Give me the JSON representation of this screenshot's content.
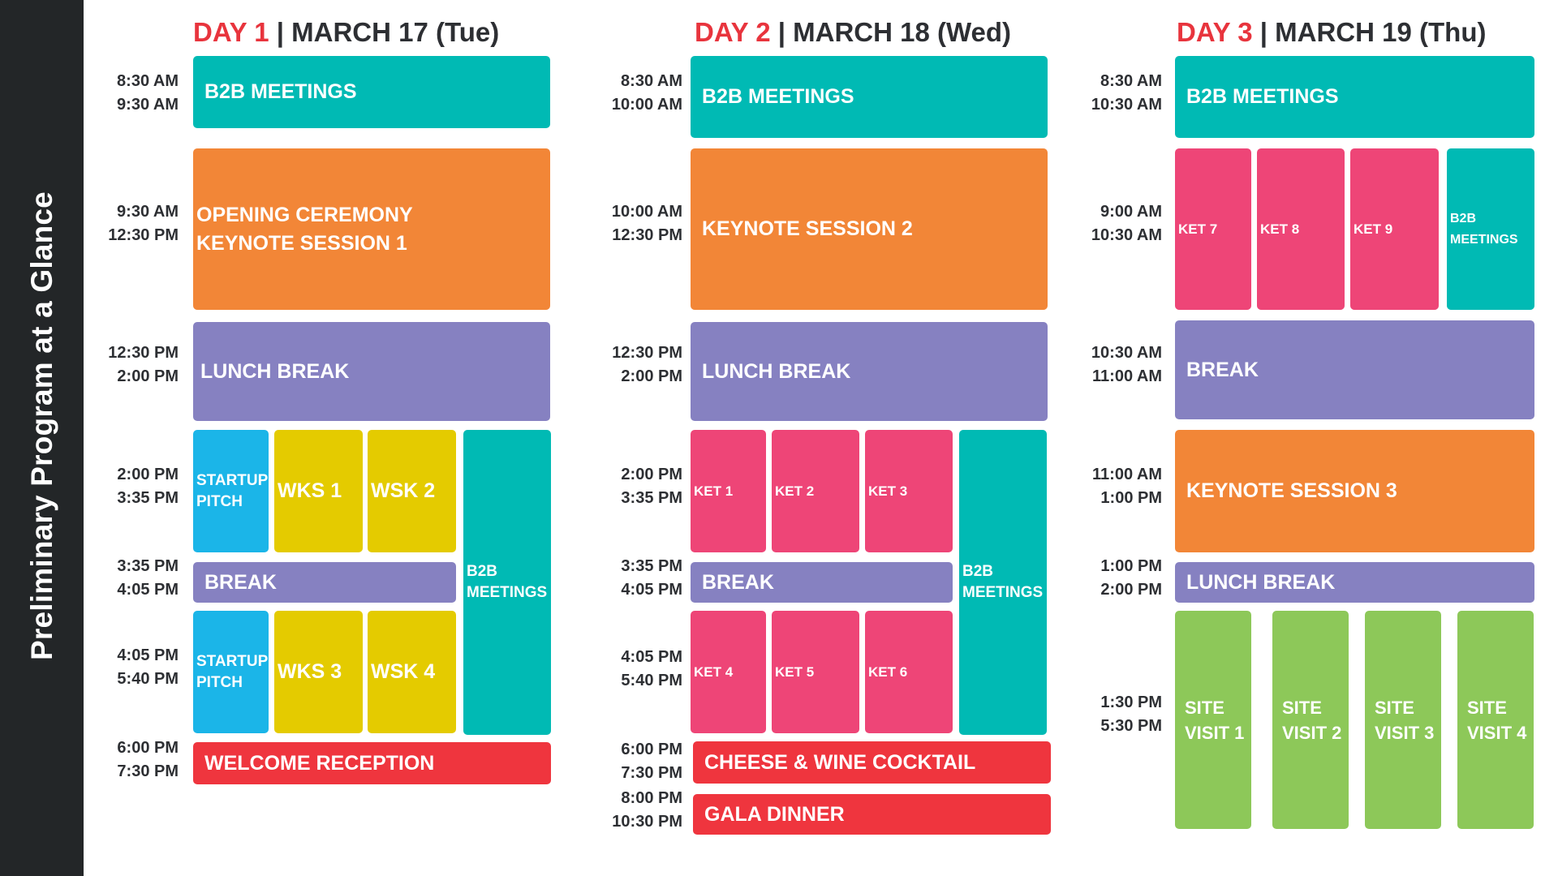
{
  "sidebar": {
    "title": "Preliminary Program at a Glance"
  },
  "day1": {
    "title_day": "DAY 1",
    "title_date": "| MARCH 17 (Tue)",
    "times": [
      [
        "8:30 AM",
        "9:30 AM"
      ],
      [
        "9:30 AM",
        "12:30 PM"
      ],
      [
        "12:30 PM",
        "2:00 PM"
      ],
      [
        "2:00 PM",
        "3:35 PM"
      ],
      [
        "3:35 PM",
        "4:05 PM"
      ],
      [
        "4:05 PM",
        "5:40 PM"
      ],
      [
        "6:00 PM",
        "7:30 PM"
      ]
    ],
    "sessions": {
      "b2b_morning": "B2B MEETINGS",
      "opening_l1": "OPENING CEREMONY",
      "opening_l2": "KEYNOTE SESSION 1",
      "lunch": "LUNCH BREAK",
      "startup_pitch_1_l1": "STARTUP",
      "startup_pitch_1_l2": "PITCH",
      "wks1": "WKS 1",
      "wsk2": "WSK 2",
      "b2b_afternoon_l1": "B2B",
      "b2b_afternoon_l2": "MEETINGS",
      "break": "BREAK",
      "startup_pitch_2_l1": "STARTUP",
      "startup_pitch_2_l2": "PITCH",
      "wks3": "WKS 3",
      "wsk4": "WSK 4",
      "welcome": "WELCOME RECEPTION"
    }
  },
  "day2": {
    "title_day": "DAY 2",
    "title_date": "| MARCH 18 (Wed)",
    "times": [
      [
        "8:30 AM",
        "10:00 AM"
      ],
      [
        "10:00 AM",
        "12:30 PM"
      ],
      [
        "12:30 PM",
        "2:00 PM"
      ],
      [
        "2:00 PM",
        "3:35 PM"
      ],
      [
        "3:35 PM",
        "4:05 PM"
      ],
      [
        "4:05 PM",
        "5:40 PM"
      ],
      [
        "6:00 PM",
        "7:30 PM"
      ],
      [
        "8:00 PM",
        "10:30 PM"
      ]
    ],
    "sessions": {
      "b2b_morning": "B2B MEETINGS",
      "keynote2": "KEYNOTE SESSION 2",
      "lunch": "LUNCH BREAK",
      "ket1": "KET 1",
      "ket2": "KET 2",
      "ket3": "KET 3",
      "b2b_afternoon_l1": "B2B",
      "b2b_afternoon_l2": "MEETINGS",
      "break": "BREAK",
      "ket4": "KET 4",
      "ket5": "KET 5",
      "ket6": "KET 6",
      "cocktail": "CHEESE & WINE COCKTAIL",
      "gala": "GALA DINNER"
    }
  },
  "day3": {
    "title_day": "DAY 3",
    "title_date": "| MARCH 19 (Thu)",
    "times": [
      [
        "8:30 AM",
        "10:30 AM"
      ],
      [
        "9:00 AM",
        "10:30 AM"
      ],
      [
        "10:30 AM",
        "11:00 AM"
      ],
      [
        "11:00 AM",
        "1:00 PM"
      ],
      [
        "1:00 PM",
        "2:00 PM"
      ],
      [
        "1:30 PM",
        "5:30 PM"
      ]
    ],
    "sessions": {
      "b2b_morning": "B2B MEETINGS",
      "ket7": "KET 7",
      "ket8": "KET 8",
      "ket9": "KET 9",
      "b2b_mid_l1": "B2B",
      "b2b_mid_l2": "MEETINGS",
      "break": "BREAK",
      "keynote3": "KEYNOTE SESSION 3",
      "lunch": "LUNCH BREAK",
      "site1_l1": "SITE",
      "site1_l2": "VISIT 1",
      "site2_l1": "SITE",
      "site2_l2": "VISIT 2",
      "site3_l1": "SITE",
      "site3_l2": "VISIT 3",
      "site4_l1": "SITE",
      "site4_l2": "VISIT 4"
    }
  },
  "colors": {
    "teal": "#00bab4",
    "orange": "#f28637",
    "purple": "#8681c1",
    "blue": "#1bb5e8",
    "yellow": "#e4cb00",
    "red": "#ef353e",
    "pink": "#ee4577",
    "green": "#8dc859",
    "accent": "#e8343d",
    "sidebar": "#232628"
  }
}
